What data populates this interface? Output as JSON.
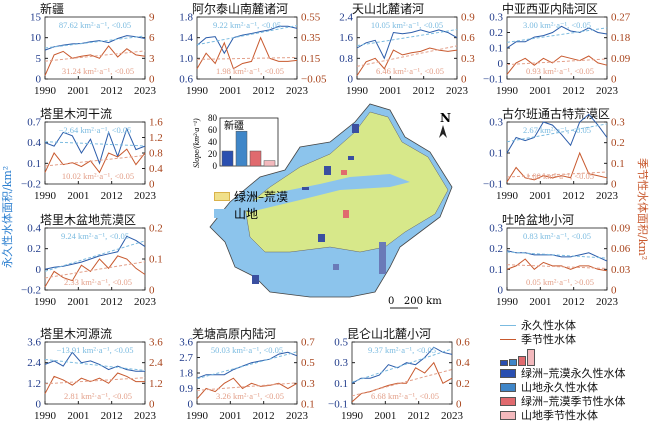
{
  "axis_labels": {
    "left": "永久性水体面积/km²",
    "right": "季节性水体面积/km²"
  },
  "colors": {
    "permanent": "#2b5caa",
    "permanent_trend": "#7bbbe0",
    "seasonal": "#c8592e",
    "seasonal_trend": "#e3a08a",
    "left_axis": "#1f3a8a",
    "right_axis": "#a8441c"
  },
  "chart_data": [
    {
      "type": "line",
      "title": "新疆",
      "x_ticks": [
        "1990",
        "2001",
        "2012",
        "2023"
      ],
      "ylim_left": [
        0,
        15
      ],
      "yticks_left": [
        "0",
        "5",
        "10",
        "15"
      ],
      "ylim_right": [
        0,
        9
      ],
      "yticks_right": [
        "0",
        "3",
        "6",
        "9"
      ],
      "perm_label": "87.62 km²·a⁻¹, <0.05",
      "seas_label": "31.24 km²·a⁻¹, <0.05",
      "x": [
        1990,
        1993,
        1996,
        1999,
        2002,
        2005,
        2008,
        2011,
        2014,
        2017,
        2020,
        2023
      ],
      "series": [
        {
          "name": "永久性水体",
          "values": [
            7,
            7.8,
            8.2,
            8.5,
            8.6,
            9,
            9.3,
            8.8,
            9.8,
            10.5,
            10.2,
            9.8
          ]
        },
        {
          "name": "季节性水体",
          "values": [
            0.5,
            3.5,
            4,
            3,
            3.3,
            3.5,
            3,
            4.8,
            3.2,
            4.4,
            3.5,
            3.3
          ]
        }
      ]
    },
    {
      "type": "line",
      "title": "阿尔泰山南麓诸河",
      "x_ticks": [
        "1990",
        "2001",
        "2012",
        "2023"
      ],
      "ylim_left": [
        0.6,
        1.8
      ],
      "yticks_left": [
        "0.6",
        "1.0",
        "1.4",
        "1.8"
      ],
      "ylim_right": [
        -0.05,
        0.55
      ],
      "yticks_right": [
        "−0.05",
        "0.15",
        "0.35",
        "0.55"
      ],
      "perm_label": "9.22 km²·a⁻¹, <0.05",
      "seas_label": "1.98 km²·a⁻¹, <0.05",
      "x": [
        1990,
        1993,
        1996,
        1999,
        2002,
        2005,
        2008,
        2011,
        2014,
        2017,
        2020,
        2023
      ],
      "series": [
        {
          "name": "永久性水体",
          "values": [
            1.25,
            1.4,
            1.42,
            1.1,
            1.4,
            1.45,
            1.48,
            1.52,
            1.55,
            1.62,
            1.62,
            1.58
          ]
        },
        {
          "name": "季节性水体",
          "values": [
            0.05,
            0.2,
            0.1,
            0.3,
            0.05,
            0.1,
            0.12,
            0.35,
            0.15,
            0.12,
            0.12,
            0.13
          ]
        }
      ]
    },
    {
      "type": "line",
      "title": "天山北麓诸河",
      "x_ticks": [
        "1990",
        "2001",
        "2012",
        "2023"
      ],
      "ylim_left": [
        0,
        2.4
      ],
      "yticks_left": [
        "0",
        "0.8",
        "1.6",
        "2.4"
      ],
      "ylim_right": [
        0,
        0.9
      ],
      "yticks_right": [
        "0",
        "0.3",
        "0.6",
        "0.9"
      ],
      "perm_label": "10.05 km²·a⁻¹, <0.05",
      "seas_label": "6.46 km²·a⁻¹, <0.05",
      "x": [
        1990,
        1993,
        1996,
        1999,
        2002,
        2005,
        2008,
        2011,
        2014,
        2017,
        2020,
        2023
      ],
      "series": [
        {
          "name": "永久性水体",
          "values": [
            1.2,
            1.4,
            1.5,
            0.8,
            1.8,
            1.75,
            1.8,
            1.9,
            1.8,
            1.9,
            1.8,
            1.6
          ]
        },
        {
          "name": "季节性水体",
          "values": [
            0.05,
            0.25,
            0.3,
            0.15,
            0.42,
            0.35,
            0.38,
            0.4,
            0.45,
            0.42,
            0.4,
            0.42
          ]
        }
      ]
    },
    {
      "type": "line",
      "title": "中亚西亚内陆河区",
      "x_ticks": [
        "1990",
        "2001",
        "2012",
        "2023"
      ],
      "ylim_left": [
        -0.1,
        0.3
      ],
      "yticks_left": [
        "−0.1",
        "0",
        "0.1",
        "0.2",
        "0.3"
      ],
      "ylim_right": [
        0,
        0.27
      ],
      "yticks_right": [
        "0",
        "0.09",
        "0.18",
        "0.27"
      ],
      "perm_label": "3.00 km²·a⁻¹, <0.05",
      "seas_label": "0.93 km²·a⁻¹, <0.05",
      "x": [
        1990,
        1993,
        1996,
        1999,
        2002,
        2005,
        2008,
        2011,
        2014,
        2017,
        2020,
        2023
      ],
      "series": [
        {
          "name": "永久性水体",
          "values": [
            0.1,
            0.14,
            0.14,
            0.17,
            0.18,
            0.2,
            0.24,
            0.21,
            0.2,
            0.23,
            0.2,
            0.19
          ]
        },
        {
          "name": "季节性水体",
          "values": [
            0.02,
            0.07,
            0.09,
            0.06,
            0.09,
            0.07,
            0.1,
            0.09,
            0.08,
            0.1,
            0.07,
            0.06
          ]
        }
      ]
    },
    {
      "type": "line",
      "title": "塔里木河干流",
      "x_ticks": [
        "1990",
        "2001",
        "2012",
        "2023"
      ],
      "ylim_left": [
        -0.2,
        0.7
      ],
      "yticks_left": [
        "−0.2",
        "0.1",
        "0.4",
        "0.7"
      ],
      "ylim_right": [
        0,
        1.6
      ],
      "yticks_right": [
        "0",
        "0.4",
        "0.8",
        "1.2",
        "1.6"
      ],
      "perm_label": "−2.64 km²·a⁻¹, <0.05",
      "seas_label": "10.02 km²·a⁻¹, <0.05",
      "x": [
        1990,
        1993,
        1996,
        1999,
        2002,
        2005,
        2008,
        2011,
        2014,
        2017,
        2020,
        2023
      ],
      "series": [
        {
          "name": "永久性水体",
          "values": [
            0.4,
            0.35,
            0.55,
            0.5,
            0.25,
            0.45,
            0.1,
            0.55,
            0.2,
            0.6,
            0.3,
            0.35
          ]
        },
        {
          "name": "季节性水体",
          "values": [
            0.3,
            0.8,
            0.5,
            0.55,
            0.45,
            0.6,
            0.3,
            0.8,
            0.7,
            0.9,
            0.5,
            0.8
          ]
        }
      ]
    },
    {
      "type": "line",
      "title": "塔里木盆地荒漠区",
      "x_ticks": [
        "1990",
        "2001",
        "2012",
        "2023"
      ],
      "ylim_left": [
        -0.2,
        0.4
      ],
      "yticks_left": [
        "−0.2",
        "0",
        "0.2",
        "0.4"
      ],
      "ylim_right": [
        0,
        0.2
      ],
      "yticks_right": [
        "0",
        "0.1",
        "0.2"
      ],
      "perm_label": "9.24 km²·a⁻¹, <0.05",
      "seas_label": "2.33 km²·a⁻¹, <0.05",
      "x": [
        1990,
        1993,
        1996,
        1999,
        2002,
        2005,
        2008,
        2011,
        2014,
        2017,
        2020,
        2023
      ],
      "series": [
        {
          "name": "永久性水体",
          "values": [
            0,
            0.02,
            0.03,
            0.05,
            0.07,
            0.1,
            0.13,
            0.15,
            0.17,
            0.32,
            0.28,
            0.22
          ]
        },
        {
          "name": "季节性水体",
          "values": [
            0.01,
            0.06,
            0.04,
            0.03,
            0.08,
            0.06,
            0.1,
            0.07,
            0.11,
            0.1,
            0.07,
            0.05
          ]
        }
      ]
    },
    {
      "type": "line",
      "title": "古尔班通古特荒漠区",
      "x_ticks": [
        "1990",
        "2001",
        "2012",
        "2023"
      ],
      "ylim_left": [
        -0.1,
        0.3
      ],
      "yticks_left": [
        "−0.1",
        "0.1",
        "0.3"
      ],
      "ylim_right": [
        0,
        0.3
      ],
      "yticks_right": [
        "0",
        "0.1",
        "0.2",
        "0.3"
      ],
      "perm_label": "2.67 km²·a⁻¹, <0.05",
      "seas_label": "1.00 km²·a⁻¹, <0.05",
      "x": [
        1990,
        1993,
        1996,
        1999,
        2002,
        2005,
        2008,
        2011,
        2014,
        2017,
        2020,
        2023
      ],
      "series": [
        {
          "name": "永久性水体",
          "values": [
            0.1,
            0.2,
            0.18,
            0.2,
            0.3,
            0.28,
            0.22,
            0.15,
            0.3,
            0.35,
            0.28,
            0.2
          ]
        },
        {
          "name": "季节性水体",
          "values": [
            0.01,
            0.08,
            0.03,
            0.02,
            0.04,
            0.03,
            0.04,
            0.03,
            0.15,
            0.05,
            0.04,
            0.03
          ]
        }
      ]
    },
    {
      "type": "line",
      "title": "吐哈盆地小河",
      "x_ticks": [
        "1990",
        "2001",
        "2012",
        "2023"
      ],
      "ylim_left": [
        0,
        0.3
      ],
      "yticks_left": [
        "0",
        "0.1",
        "0.2",
        "0.3"
      ],
      "ylim_right": [
        0,
        0.09
      ],
      "yticks_right": [
        "0",
        "0.03",
        "0.06",
        "0.09"
      ],
      "perm_label": "0.83 km²·a⁻¹, <0.05",
      "seas_label": "0.05 km²·a⁻¹, >0.05",
      "x": [
        1990,
        1993,
        1996,
        1999,
        2002,
        2005,
        2008,
        2011,
        2014,
        2017,
        2020,
        2023
      ],
      "series": [
        {
          "name": "永久性水体",
          "values": [
            0.19,
            0.18,
            0.18,
            0.17,
            0.17,
            0.17,
            0.16,
            0.16,
            0.17,
            0.18,
            0.16,
            0.14
          ]
        },
        {
          "name": "季节性水体",
          "values": [
            0.03,
            0.035,
            0.045,
            0.03,
            0.04,
            0.035,
            0.035,
            0.03,
            0.035,
            0.035,
            0.03,
            0.028
          ]
        }
      ]
    },
    {
      "type": "line",
      "title": "塔里木河源流",
      "x_ticks": [
        "1990",
        "2001",
        "2012",
        "2023"
      ],
      "ylim_left": [
        0,
        3.6
      ],
      "yticks_left": [
        "0",
        "1.2",
        "2.4",
        "3.6"
      ],
      "ylim_right": [
        0,
        3.6
      ],
      "yticks_right": [
        "0",
        "1.2",
        "2.4",
        "3.6"
      ],
      "perm_label": "−13.91 km²·a⁻¹, <0.05",
      "seas_label": "2.81 km²·a⁻¹, <0.05",
      "x": [
        1990,
        1993,
        1996,
        1999,
        2002,
        2005,
        2008,
        2011,
        2014,
        2017,
        2020,
        2023
      ],
      "series": [
        {
          "name": "永久性水体",
          "values": [
            2.3,
            2.5,
            2.2,
            3,
            2.4,
            2.5,
            2.3,
            2,
            2.2,
            2,
            1.9,
            1.9
          ]
        },
        {
          "name": "季节性水体",
          "values": [
            0.6,
            1.6,
            1.4,
            1.1,
            1.5,
            1.3,
            1.5,
            1.2,
            1.8,
            1.6,
            1.3,
            1.3
          ]
        }
      ]
    },
    {
      "type": "line",
      "title": "羌塘高原内陆河",
      "x_ticks": [
        "1990",
        "2001",
        "2012",
        "2023"
      ],
      "ylim_left": [
        0,
        3.6
      ],
      "yticks_left": [
        "0",
        "0.9",
        "1.8",
        "2.7",
        "3.6"
      ],
      "ylim_right": [
        0.1,
        0.7
      ],
      "yticks_right": [
        "0.1",
        "0.3",
        "0.5",
        "0.7"
      ],
      "perm_label": "50.03 km²·a⁻¹, <0.05",
      "seas_label": "3.26 km²·a⁻¹, <0.05",
      "x": [
        1990,
        1993,
        1996,
        1999,
        2002,
        2005,
        2008,
        2011,
        2014,
        2017,
        2020,
        2023
      ],
      "series": [
        {
          "name": "永久性水体",
          "values": [
            1.5,
            1.7,
            1.7,
            1.7,
            2,
            2.2,
            2.4,
            2.5,
            2.6,
            2.9,
            3,
            2.8
          ]
        },
        {
          "name": "季节性水体",
          "values": [
            0.15,
            0.25,
            0.22,
            0.3,
            0.35,
            0.25,
            0.3,
            0.27,
            0.28,
            0.3,
            0.25,
            0.3
          ]
        }
      ]
    },
    {
      "type": "line",
      "title": "昆仑山北麓小河",
      "x_ticks": [
        "1990",
        "2001",
        "2012",
        "2023"
      ],
      "ylim_left": [
        -0.1,
        0.5
      ],
      "yticks_left": [
        "−0.1",
        "0.1",
        "0.3",
        "0.5"
      ],
      "ylim_right": [
        0,
        0.6
      ],
      "yticks_right": [
        "0",
        "0.2",
        "0.4",
        "0.6"
      ],
      "perm_label": "9.37 km²·a⁻¹, <0.05",
      "seas_label": "6.68 km²·a⁻¹, <0.05",
      "x": [
        1990,
        1993,
        1996,
        1999,
        2002,
        2005,
        2008,
        2011,
        2014,
        2017,
        2020,
        2023
      ],
      "series": [
        {
          "name": "永久性水体",
          "values": [
            0.1,
            0.15,
            0.15,
            0.18,
            0.28,
            0.25,
            0.3,
            0.28,
            0.35,
            0.45,
            0.4,
            0.38
          ]
        },
        {
          "name": "季节性水体",
          "values": [
            0.02,
            0.1,
            0.12,
            0.15,
            0.18,
            0.2,
            0.2,
            0.35,
            0.3,
            0.4,
            0.2,
            0.25
          ]
        }
      ]
    },
    {
      "type": "bar",
      "title": "新疆",
      "ylabel": "Slope/(km²·a⁻¹)",
      "ylim": [
        0,
        80
      ],
      "yticks": [
        "0",
        "20",
        "40",
        "60",
        "80"
      ],
      "categories": [
        "绿洲–荒漠永久性水体",
        "山地永久性水体",
        "绿洲–荒漠季节性水体",
        "山地季节性水体"
      ],
      "values": [
        25,
        58,
        25,
        9
      ],
      "colors": [
        "#2a4fb0",
        "#3f86c8",
        "#e06a6e",
        "#f3b9bd"
      ]
    }
  ],
  "map": {
    "north": "N",
    "scale": "0   200 km",
    "legend": [
      {
        "label": "绿洲–荒漠",
        "color": "#f0e08a"
      },
      {
        "label": "山地",
        "color": "#8cc4ec"
      }
    ]
  },
  "legend": {
    "lines": [
      "永久性水体",
      "季节性水体"
    ],
    "bars": [
      "绿洲–荒漠永久性水体",
      "山地永久性水体",
      "绿洲–荒漠季节性水体",
      "山地季节性水体"
    ]
  }
}
